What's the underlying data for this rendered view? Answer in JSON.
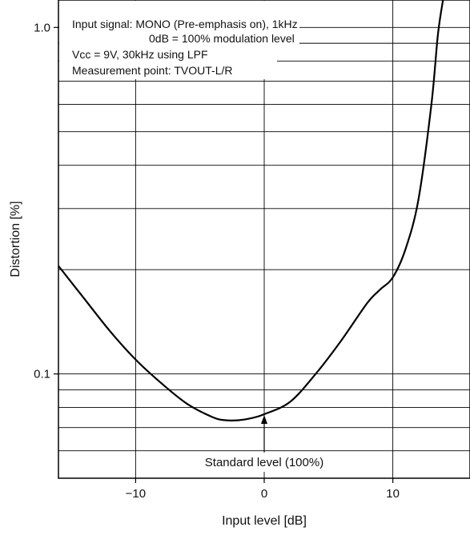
{
  "chart_data": {
    "type": "line",
    "title": "",
    "xlabel": "Input level [dB]",
    "ylabel": "Distortion [%]",
    "x_scale": "linear",
    "y_scale": "log",
    "xlim": [
      -16,
      16
    ],
    "ylim": [
      0.05,
      1.2
    ],
    "x_ticks": [
      -10,
      0,
      10
    ],
    "x_tick_labels": [
      "−10",
      "0",
      "10"
    ],
    "y_ticks": [
      0.1,
      1.0
    ],
    "y_tick_labels": [
      "0.1",
      "1.0"
    ],
    "grid": true,
    "legend": "none",
    "line_color": "#000000",
    "series": [
      {
        "x": [
          -16,
          -14,
          -12,
          -10,
          -8,
          -6,
          -4,
          -3,
          -2,
          -1,
          0,
          2,
          4,
          6,
          8,
          9,
          10,
          11,
          12,
          13,
          13.5,
          13.9
        ],
        "y": [
          0.205,
          0.165,
          0.133,
          0.11,
          0.094,
          0.082,
          0.075,
          0.0735,
          0.0735,
          0.0745,
          0.0765,
          0.083,
          0.1,
          0.125,
          0.16,
          0.175,
          0.19,
          0.23,
          0.32,
          0.6,
          0.95,
          1.2
        ]
      }
    ],
    "notes": [
      "Input signal: MONO (Pre-emphasis on), 1kHz",
      "0dB = 100% modulation level",
      "Vcc = 9V, 30kHz using LPF",
      "Measurement point: TVOUT-L/R"
    ],
    "annotations": [
      {
        "text": "Standard level (100%)",
        "x": 0,
        "y": 0.0765
      }
    ]
  }
}
